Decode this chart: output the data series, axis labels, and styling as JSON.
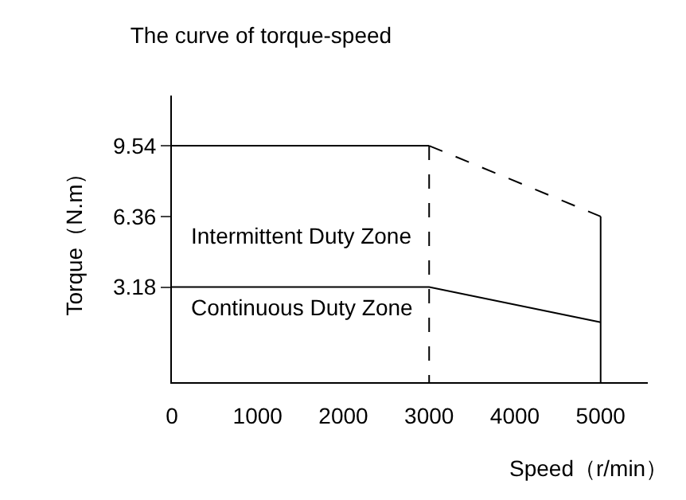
{
  "chart_data": {
    "type": "line",
    "title": "The curve of torque-speed",
    "xlabel": "Speed（r/min）",
    "ylabel": "Torque（N.m）",
    "series": [
      {
        "color": "#000000",
        "line_style": "solid",
        "x": [
          0,
          3000
        ],
        "values": [
          9.54,
          9.54
        ]
      },
      {
        "color": "#000000",
        "line_style": "dashed",
        "x": [
          3000,
          5000
        ],
        "values": [
          9.54,
          6.36
        ]
      },
      {
        "color": "#000000",
        "line_style": "solid",
        "x": [
          5000,
          5000
        ],
        "values": [
          6.36,
          -1.1
        ]
      },
      {
        "color": "#000000",
        "line_style": "dashed",
        "x": [
          3000,
          3000
        ],
        "values": [
          9.54,
          -1.1
        ]
      },
      {
        "color": "#000000",
        "line_style": "solid",
        "x": [
          0,
          3000,
          5000
        ],
        "values": [
          3.18,
          3.18,
          1.6
        ]
      }
    ],
    "annotations": [
      "Intermittent Duty Zone",
      "Continuous Duty Zone"
    ],
    "xlim": [
      0,
      5550
    ],
    "xticks": [
      0,
      1000,
      2000,
      3000,
      4000,
      5000
    ],
    "ylim": [
      -1.1,
      11.8
    ],
    "yticks": [
      3.18,
      6.36,
      9.54
    ],
    "marker": "none"
  }
}
